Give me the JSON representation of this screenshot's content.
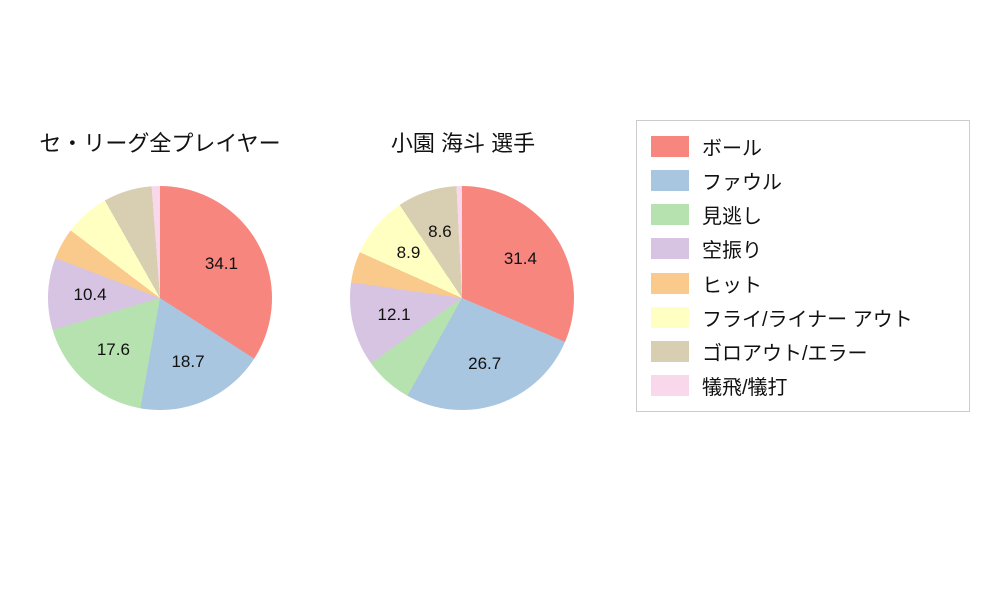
{
  "figure": {
    "background": "#ffffff"
  },
  "legend": {
    "position": "right",
    "border_color": "#cccccc",
    "items": [
      {
        "label": "ボール",
        "color": "#f7867e"
      },
      {
        "label": "ファウル",
        "color": "#a8c6e0"
      },
      {
        "label": "見逃し",
        "color": "#b6e2af"
      },
      {
        "label": "空振り",
        "color": "#d6c4e2"
      },
      {
        "label": "ヒット",
        "color": "#fac98c"
      },
      {
        "label": "フライ/ライナー アウト",
        "color": "#ffffc2"
      },
      {
        "label": "ゴロアウト/エラー",
        "color": "#d8cfb2"
      },
      {
        "label": "犠飛/犠打",
        "color": "#fad8ec"
      }
    ]
  },
  "chart_data": [
    {
      "type": "pie",
      "title": "セ・リーグ全プレイヤー",
      "categories": [
        "ボール",
        "ファウル",
        "見逃し",
        "空振り",
        "ヒット",
        "フライ/ライナー アウト",
        "ゴロアウト/エラー",
        "犠飛/犠打"
      ],
      "values": [
        34.1,
        18.7,
        17.6,
        10.4,
        4.5,
        6.5,
        7.0,
        1.2
      ],
      "data_labels": [
        "34.1",
        "18.7",
        "17.6",
        "10.4",
        "",
        "",
        "",
        ""
      ],
      "colors": [
        "#f7867e",
        "#a8c6e0",
        "#b6e2af",
        "#d6c4e2",
        "#fac98c",
        "#ffffc2",
        "#d8cfb2",
        "#fad8ec"
      ],
      "start_angle": "top",
      "direction": "clockwise",
      "legend_position": "right"
    },
    {
      "type": "pie",
      "title": "小園 海斗 選手",
      "categories": [
        "ボール",
        "ファウル",
        "見逃し",
        "空振り",
        "ヒット",
        "フライ/ライナー アウト",
        "ゴロアウト/エラー",
        "犠飛/犠打"
      ],
      "values": [
        31.4,
        26.7,
        7.0,
        12.1,
        4.5,
        8.9,
        8.6,
        0.8
      ],
      "data_labels": [
        "31.4",
        "26.7",
        "",
        "12.1",
        "",
        "8.9",
        "8.6",
        ""
      ],
      "colors": [
        "#f7867e",
        "#a8c6e0",
        "#b6e2af",
        "#d6c4e2",
        "#fac98c",
        "#ffffc2",
        "#d8cfb2",
        "#fad8ec"
      ],
      "start_angle": "top",
      "direction": "clockwise",
      "legend_position": "right"
    }
  ]
}
